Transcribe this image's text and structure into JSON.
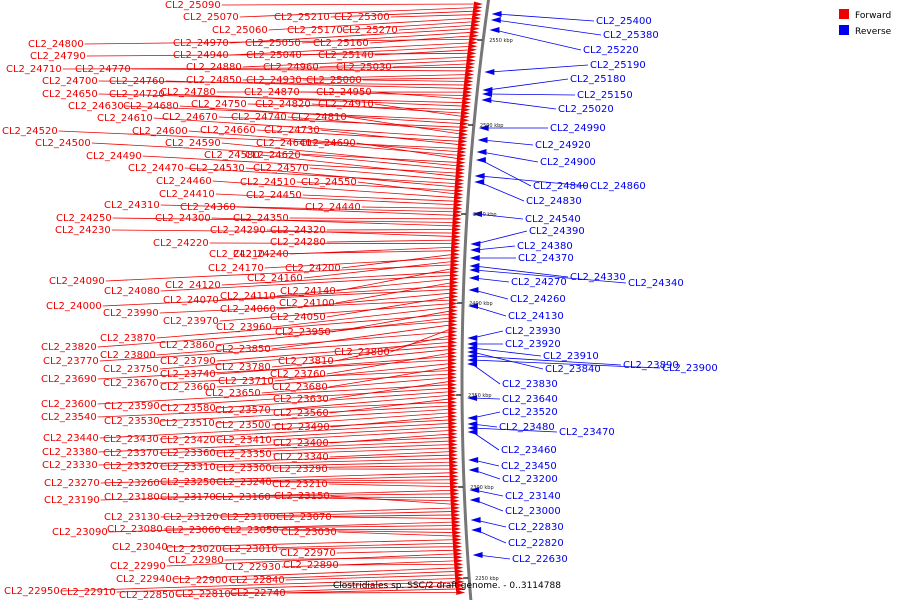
{
  "title": "Clostridiales sp. SSC/2 draft genome. - 0..3114788",
  "legend": [
    {
      "label": "Forward",
      "color": "#ee0000"
    },
    {
      "label": "Reverse",
      "color": "#0000ee"
    }
  ],
  "ticks": [
    "2550 kbp",
    "2500 kbp",
    "2450 kbp",
    "2400 kbp",
    "2350 kbp",
    "2300 kbp",
    "2250 kbp"
  ],
  "forward_labels": [
    "CL2_25090",
    "CL2_25070",
    "CL2_25210",
    "CL2_25300",
    "CL2_25060",
    "CL2_25170",
    "CL2_25270",
    "CL2_24970",
    "CL2_25050",
    "CL2_25160",
    "CL2_24800",
    "CL2_24940",
    "CL2_25040",
    "CL2_25140",
    "CL2_24790",
    "CL2_24880",
    "CL2_24960",
    "CL2_25030",
    "CL2_24710",
    "CL2_24770",
    "CL2_24850",
    "CL2_24930",
    "CL2_25000",
    "CL2_24700",
    "CL2_24760",
    "CL2_24780",
    "CL2_24870",
    "CL2_24950",
    "CL2_24650",
    "CL2_24720",
    "CL2_24750",
    "CL2_24820",
    "CL2_24910",
    "CL2_24630",
    "CL2_24680",
    "CL2_24670",
    "CL2_24740",
    "CL2_24810",
    "CL2_24610",
    "CL2_24660",
    "CL2_24730",
    "CL2_24520",
    "CL2_24600",
    "CL2_24640",
    "CL2_24690",
    "CL2_24500",
    "CL2_24590",
    "CL2_24620",
    "CL2_24490",
    "CL2_24580",
    "CL2_24570",
    "CL2_24470",
    "CL2_24530",
    "CL2_24510",
    "CL2_24550",
    "CL2_24460",
    "CL2_24450",
    "CL2_24410",
    "CL2_24440",
    "CL2_24310",
    "CL2_24360",
    "CL2_24350",
    "CL2_24250",
    "CL2_24300",
    "CL2_24320",
    "CL2_24230",
    "CL2_24290",
    "CL2_24280",
    "CL2_24220",
    "CL2_24240",
    "CL2_24210",
    "CL2_24200",
    "CL2_24170",
    "CL2_24160",
    "CL2_24090",
    "CL2_24140",
    "CL2_24120",
    "CL2_24080",
    "CL2_24110",
    "CL2_24100",
    "CL2_24070",
    "CL2_24000",
    "CL2_24060",
    "CL2_24050",
    "CL2_23990",
    "CL2_23970",
    "CL2_23960",
    "CL2_23950",
    "CL2_23870",
    "CL2_23860",
    "CL2_23820",
    "CL2_23850",
    "CL2_23880",
    "CL2_23800",
    "CL2_23810",
    "CL2_23770",
    "CL2_23790",
    "CL2_23750",
    "CL2_23780",
    "CL2_23760",
    "CL2_23740",
    "CL2_23690",
    "CL2_23710",
    "CL2_23680",
    "CL2_23670",
    "CL2_23660",
    "CL2_23650",
    "CL2_23630",
    "CL2_23600",
    "CL2_23590",
    "CL2_23580",
    "CL2_23570",
    "CL2_23560",
    "CL2_23540",
    "CL2_23530",
    "CL2_23510",
    "CL2_23500",
    "CL2_23490",
    "CL2_23440",
    "CL2_23430",
    "CL2_23420",
    "CL2_23410",
    "CL2_23400",
    "CL2_23380",
    "CL2_23370",
    "CL2_23360",
    "CL2_23350",
    "CL2_23340",
    "CL2_23330",
    "CL2_23320",
    "CL2_23310",
    "CL2_23300",
    "CL2_23290",
    "CL2_23270",
    "CL2_23260",
    "CL2_23250",
    "CL2_23240",
    "CL2_23210",
    "CL2_23190",
    "CL2_23180",
    "CL2_23170",
    "CL2_23160",
    "CL2_23150",
    "CL2_23130",
    "CL2_23120",
    "CL2_23100",
    "CL2_23070",
    "CL2_23090",
    "CL2_23080",
    "CL2_23060",
    "CL2_23050",
    "CL2_23030",
    "CL2_23040",
    "CL2_23020",
    "CL2_23010",
    "CL2_22970",
    "CL2_22990",
    "CL2_22980",
    "CL2_22930",
    "CL2_22890",
    "CL2_22940",
    "CL2_22900",
    "CL2_22840",
    "CL2_22950",
    "CL2_22910",
    "CL2_22850",
    "CL2_22810",
    "CL2_22740"
  ],
  "reverse_labels": [
    "CL2_25400",
    "CL2_25380",
    "CL2_25220",
    "CL2_25190",
    "CL2_25180",
    "CL2_25150",
    "CL2_25020",
    "CL2_24990",
    "CL2_24920",
    "CL2_24900",
    "CL2_24840",
    "CL2_24860",
    "CL2_24830",
    "CL2_24540",
    "CL2_24390",
    "CL2_24380",
    "CL2_24370",
    "CL2_24330",
    "CL2_24340",
    "CL2_24270",
    "CL2_24260",
    "CL2_24130",
    "CL2_23930",
    "CL2_23920",
    "CL2_23910",
    "CL2_23840",
    "CL2_23890",
    "CL2_23900",
    "CL2_23830",
    "CL2_23640",
    "CL2_23520",
    "CL2_23480",
    "CL2_23470",
    "CL2_23460",
    "CL2_23450",
    "CL2_23200",
    "CL2_23140",
    "CL2_23000",
    "CL2_22830",
    "CL2_22820",
    "CL2_22630"
  ]
}
